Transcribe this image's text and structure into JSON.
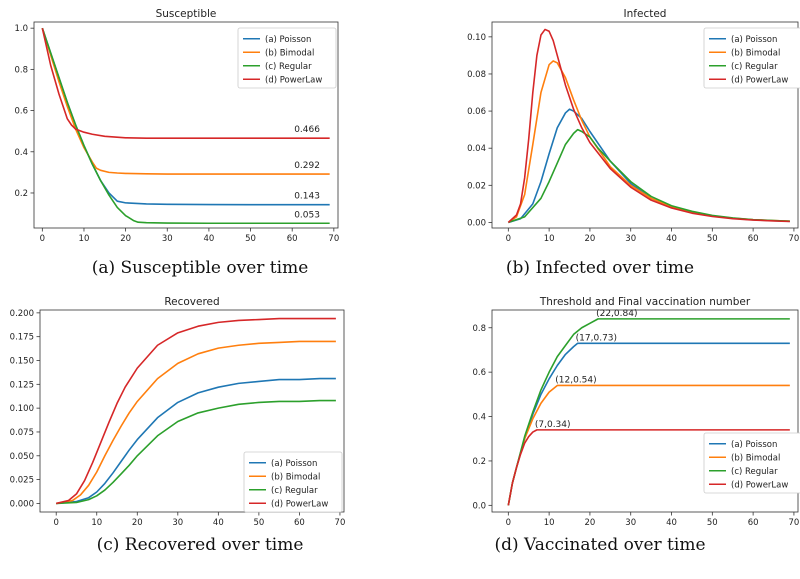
{
  "series_names": [
    "(a) Poisson",
    "(b) Bimodal",
    "(c) Regular",
    "(d) PowerLaw"
  ],
  "colors": {
    "Poisson": "#1f77b4",
    "Bimodal": "#ff7f0e",
    "Regular": "#2ca02c",
    "PowerLaw": "#d62728"
  },
  "captions": {
    "a": "(a) Susceptible over time",
    "b": "(b) Infected over time",
    "c": "(c) Recovered over time",
    "d": "(d) Vaccinated over time"
  },
  "chart_data": [
    {
      "id": "a",
      "type": "line",
      "title": "Susceptible",
      "xlim": [
        -2,
        71
      ],
      "ylim": [
        0.03,
        1.03
      ],
      "xticks": [
        0,
        10,
        20,
        30,
        40,
        50,
        60,
        70
      ],
      "yticks": [
        0.2,
        0.4,
        0.6,
        0.8,
        1.0
      ],
      "ytick_labels": [
        "0.2",
        "0.4",
        "0.6",
        "0.8",
        "1.0"
      ],
      "legend": "top-right",
      "annotations": [
        {
          "text": "0.466",
          "x": 60,
          "y": 0.466
        },
        {
          "text": "0.292",
          "x": 60,
          "y": 0.292
        },
        {
          "text": "0.143",
          "x": 60,
          "y": 0.143
        },
        {
          "text": "0.053",
          "x": 60,
          "y": 0.053
        }
      ],
      "series": [
        {
          "name": "(a) Poisson",
          "color": "#1f77b4",
          "x": [
            0,
            2,
            4,
            6,
            8,
            10,
            12,
            14,
            16,
            18,
            20,
            25,
            30,
            40,
            50,
            60,
            69
          ],
          "y": [
            1.0,
            0.88,
            0.76,
            0.64,
            0.53,
            0.43,
            0.34,
            0.26,
            0.2,
            0.16,
            0.152,
            0.147,
            0.145,
            0.144,
            0.143,
            0.143,
            0.143
          ]
        },
        {
          "name": "(b) Bimodal",
          "color": "#ff7f0e",
          "x": [
            0,
            2,
            4,
            6,
            8,
            10,
            12,
            13,
            14,
            16,
            18,
            20,
            25,
            30,
            40,
            50,
            60,
            69
          ],
          "y": [
            1.0,
            0.87,
            0.74,
            0.62,
            0.51,
            0.42,
            0.35,
            0.32,
            0.31,
            0.3,
            0.297,
            0.295,
            0.293,
            0.292,
            0.292,
            0.292,
            0.292,
            0.292
          ]
        },
        {
          "name": "(c) Regular",
          "color": "#2ca02c",
          "x": [
            0,
            2,
            4,
            6,
            8,
            10,
            12,
            14,
            16,
            18,
            20,
            22,
            23,
            25,
            30,
            40,
            50,
            60,
            69
          ],
          "y": [
            1.0,
            0.88,
            0.76,
            0.64,
            0.53,
            0.43,
            0.34,
            0.26,
            0.19,
            0.13,
            0.09,
            0.065,
            0.058,
            0.056,
            0.054,
            0.053,
            0.053,
            0.053,
            0.053
          ]
        },
        {
          "name": "(d) PowerLaw",
          "color": "#d62728",
          "x": [
            0,
            2,
            4,
            6,
            7,
            8,
            10,
            12,
            15,
            20,
            25,
            30,
            40,
            50,
            60,
            69
          ],
          "y": [
            1.0,
            0.82,
            0.68,
            0.56,
            0.53,
            0.51,
            0.495,
            0.485,
            0.475,
            0.468,
            0.466,
            0.466,
            0.466,
            0.466,
            0.466,
            0.466
          ]
        }
      ]
    },
    {
      "id": "b",
      "type": "line",
      "title": "Infected",
      "xlim": [
        -4,
        71
      ],
      "ylim": [
        -0.003,
        0.108
      ],
      "xticks": [
        0,
        10,
        20,
        30,
        40,
        50,
        60,
        70
      ],
      "yticks": [
        0.0,
        0.02,
        0.04,
        0.06,
        0.08,
        0.1
      ],
      "ytick_labels": [
        "0.00",
        "0.02",
        "0.04",
        "0.06",
        "0.08",
        "0.10"
      ],
      "legend": "top-right",
      "series": [
        {
          "name": "(a) Poisson",
          "color": "#1f77b4",
          "x": [
            0,
            3,
            6,
            8,
            10,
            12,
            14,
            15,
            16,
            18,
            20,
            25,
            30,
            35,
            40,
            45,
            50,
            55,
            60,
            65,
            69
          ],
          "y": [
            0,
            0.002,
            0.01,
            0.022,
            0.037,
            0.051,
            0.059,
            0.061,
            0.06,
            0.056,
            0.049,
            0.033,
            0.021,
            0.013,
            0.0085,
            0.0055,
            0.0035,
            0.0022,
            0.0014,
            0.0009,
            0.0006
          ]
        },
        {
          "name": "(b) Bimodal",
          "color": "#ff7f0e",
          "x": [
            0,
            2,
            4,
            6,
            8,
            10,
            11,
            12,
            14,
            16,
            18,
            20,
            25,
            30,
            35,
            40,
            45,
            50,
            55,
            60,
            65,
            69
          ],
          "y": [
            0,
            0.003,
            0.015,
            0.042,
            0.07,
            0.085,
            0.087,
            0.086,
            0.078,
            0.066,
            0.055,
            0.046,
            0.03,
            0.02,
            0.013,
            0.0085,
            0.0055,
            0.0036,
            0.0023,
            0.0015,
            0.001,
            0.0007
          ]
        },
        {
          "name": "(c) Regular",
          "color": "#2ca02c",
          "x": [
            0,
            4,
            8,
            10,
            12,
            14,
            16,
            17,
            18,
            20,
            22,
            25,
            30,
            35,
            40,
            45,
            50,
            55,
            60,
            65,
            69
          ],
          "y": [
            0,
            0.003,
            0.013,
            0.022,
            0.032,
            0.042,
            0.048,
            0.05,
            0.049,
            0.046,
            0.04,
            0.033,
            0.022,
            0.014,
            0.009,
            0.006,
            0.0038,
            0.0024,
            0.0015,
            0.001,
            0.0007
          ]
        },
        {
          "name": "(d) PowerLaw",
          "color": "#d62728",
          "x": [
            0,
            2,
            3,
            4,
            5,
            6,
            7,
            8,
            9,
            10,
            11,
            12,
            14,
            16,
            18,
            20,
            25,
            30,
            35,
            40,
            45,
            50,
            55,
            60,
            65,
            69
          ],
          "y": [
            0,
            0.004,
            0.01,
            0.024,
            0.045,
            0.07,
            0.09,
            0.101,
            0.104,
            0.103,
            0.098,
            0.09,
            0.074,
            0.061,
            0.051,
            0.043,
            0.029,
            0.019,
            0.012,
            0.0078,
            0.005,
            0.0032,
            0.002,
            0.0013,
            0.0008,
            0.0005
          ]
        }
      ]
    },
    {
      "id": "c",
      "type": "line",
      "title": "Recovered",
      "xlim": [
        -4,
        71
      ],
      "ylim": [
        -0.009,
        0.203
      ],
      "xticks": [
        0,
        10,
        20,
        30,
        40,
        50,
        60,
        70
      ],
      "yticks": [
        0.0,
        0.025,
        0.05,
        0.075,
        0.1,
        0.125,
        0.15,
        0.175,
        0.2
      ],
      "ytick_labels": [
        "0.000",
        "0.025",
        "0.050",
        "0.075",
        "0.100",
        "0.125",
        "0.150",
        "0.175",
        "0.200"
      ],
      "legend": "bottom-right",
      "series": [
        {
          "name": "(a) Poisson",
          "color": "#1f77b4",
          "x": [
            0,
            5,
            8,
            10,
            12,
            14,
            16,
            18,
            20,
            25,
            30,
            35,
            40,
            45,
            50,
            55,
            60,
            65,
            69
          ],
          "y": [
            0,
            0.002,
            0.006,
            0.012,
            0.021,
            0.032,
            0.044,
            0.056,
            0.067,
            0.09,
            0.106,
            0.116,
            0.122,
            0.126,
            0.128,
            0.13,
            0.13,
            0.131,
            0.131
          ]
        },
        {
          "name": "(b) Bimodal",
          "color": "#ff7f0e",
          "x": [
            0,
            4,
            6,
            8,
            10,
            12,
            14,
            16,
            18,
            20,
            25,
            30,
            35,
            40,
            45,
            50,
            55,
            60,
            65,
            69
          ],
          "y": [
            0,
            0.003,
            0.009,
            0.019,
            0.033,
            0.05,
            0.066,
            0.081,
            0.095,
            0.107,
            0.131,
            0.147,
            0.157,
            0.163,
            0.166,
            0.168,
            0.169,
            0.17,
            0.17,
            0.17
          ]
        },
        {
          "name": "(c) Regular",
          "color": "#2ca02c",
          "x": [
            0,
            5,
            8,
            10,
            12,
            14,
            16,
            18,
            20,
            25,
            30,
            35,
            40,
            45,
            50,
            55,
            60,
            65,
            69
          ],
          "y": [
            0,
            0.001,
            0.004,
            0.008,
            0.014,
            0.022,
            0.031,
            0.04,
            0.05,
            0.071,
            0.086,
            0.095,
            0.1,
            0.104,
            0.106,
            0.107,
            0.107,
            0.108,
            0.108
          ]
        },
        {
          "name": "(d) PowerLaw",
          "color": "#d62728",
          "x": [
            0,
            3,
            5,
            7,
            9,
            11,
            13,
            15,
            17,
            20,
            25,
            30,
            35,
            40,
            45,
            50,
            55,
            60,
            65,
            69
          ],
          "y": [
            0,
            0.003,
            0.01,
            0.024,
            0.043,
            0.064,
            0.085,
            0.105,
            0.122,
            0.142,
            0.166,
            0.179,
            0.186,
            0.19,
            0.192,
            0.193,
            0.194,
            0.194,
            0.194,
            0.194
          ]
        }
      ]
    },
    {
      "id": "d",
      "type": "line",
      "title": "Threshold and Final vaccination number",
      "xlim": [
        -4,
        71
      ],
      "ylim": [
        -0.03,
        0.88
      ],
      "xticks": [
        0,
        10,
        20,
        30,
        40,
        50,
        60,
        70
      ],
      "yticks": [
        0.0,
        0.2,
        0.4,
        0.6,
        0.8
      ],
      "ytick_labels": [
        "0.0",
        "0.2",
        "0.4",
        "0.6",
        "0.8"
      ],
      "legend": "bottom-right",
      "annotations": [
        {
          "text": "(22,0.84)",
          "x": 22,
          "y": 0.84
        },
        {
          "text": "(17,0.73)",
          "x": 17,
          "y": 0.73
        },
        {
          "text": "(12,0.54)",
          "x": 12,
          "y": 0.54
        },
        {
          "text": "(7,0.34)",
          "x": 7,
          "y": 0.34
        }
      ],
      "series": [
        {
          "name": "(a) Poisson",
          "color": "#1f77b4",
          "x": [
            0,
            1,
            2,
            4,
            6,
            8,
            10,
            12,
            14,
            16,
            17,
            20,
            30,
            40,
            50,
            60,
            69
          ],
          "y": [
            0,
            0.1,
            0.17,
            0.3,
            0.41,
            0.5,
            0.57,
            0.63,
            0.68,
            0.715,
            0.73,
            0.73,
            0.73,
            0.73,
            0.73,
            0.73,
            0.73
          ]
        },
        {
          "name": "(b) Bimodal",
          "color": "#ff7f0e",
          "x": [
            0,
            1,
            2,
            4,
            6,
            8,
            10,
            12,
            15,
            20,
            30,
            40,
            50,
            60,
            69
          ],
          "y": [
            0,
            0.1,
            0.17,
            0.3,
            0.39,
            0.46,
            0.51,
            0.54,
            0.54,
            0.54,
            0.54,
            0.54,
            0.54,
            0.54,
            0.54
          ]
        },
        {
          "name": "(c) Regular",
          "color": "#2ca02c",
          "x": [
            0,
            1,
            2,
            4,
            6,
            8,
            10,
            12,
            14,
            16,
            18,
            20,
            22,
            25,
            30,
            40,
            50,
            60,
            69
          ],
          "y": [
            0,
            0.1,
            0.17,
            0.31,
            0.42,
            0.52,
            0.6,
            0.67,
            0.72,
            0.77,
            0.8,
            0.82,
            0.84,
            0.84,
            0.84,
            0.84,
            0.84,
            0.84,
            0.84
          ]
        },
        {
          "name": "(d) PowerLaw",
          "color": "#d62728",
          "x": [
            0,
            1,
            2,
            3,
            4,
            5,
            6,
            7,
            10,
            20,
            30,
            40,
            50,
            60,
            69
          ],
          "y": [
            0,
            0.1,
            0.17,
            0.23,
            0.28,
            0.31,
            0.33,
            0.34,
            0.34,
            0.34,
            0.34,
            0.34,
            0.34,
            0.34,
            0.34
          ]
        }
      ]
    }
  ]
}
